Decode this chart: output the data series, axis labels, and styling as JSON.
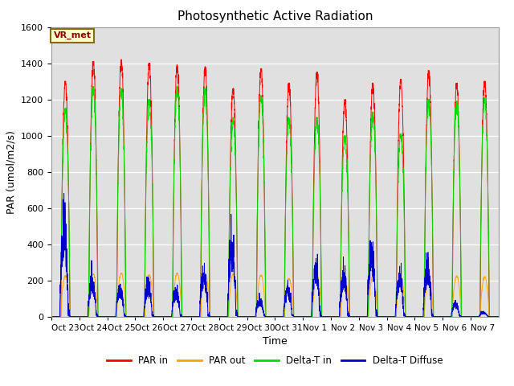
{
  "title": "Photosynthetic Active Radiation",
  "ylabel": "PAR (umol/m2/s)",
  "xlabel": "Time",
  "annotation": "VR_met",
  "ylim": [
    0,
    1600
  ],
  "bg_color": "#e0e0e0",
  "legend": [
    "PAR in",
    "PAR out",
    "Delta-T in",
    "Delta-T Diffuse"
  ],
  "legend_colors": [
    "#ff0000",
    "#ffa500",
    "#00dd00",
    "#0000cc"
  ],
  "x_tick_labels": [
    "Oct 23",
    "Oct 24",
    "Oct 25",
    "Oct 26",
    "Oct 27",
    "Oct 28",
    "Oct 29",
    "Oct 30",
    "Oct 31",
    "Nov 1",
    "Nov 2",
    "Nov 3",
    "Nov 4",
    "Nov 5",
    "Nov 6",
    "Nov 7"
  ],
  "n_days": 16,
  "pts_per_day": 288,
  "par_in_peaks": [
    1300,
    1410,
    1420,
    1400,
    1390,
    1380,
    1260,
    1370,
    1290,
    1350,
    1200,
    1290,
    1310,
    1360,
    1290,
    1300
  ],
  "par_out_peaks": [
    225,
    235,
    240,
    230,
    240,
    240,
    235,
    230,
    210,
    225,
    200,
    225,
    220,
    210,
    225,
    220
  ],
  "delta_t_peaks": [
    1150,
    1270,
    1260,
    1200,
    1270,
    1260,
    1100,
    1220,
    1100,
    1100,
    1000,
    1130,
    1010,
    1200,
    1190,
    1210
  ],
  "delta_t_diff_peaks": [
    680,
    310,
    180,
    220,
    175,
    295,
    565,
    130,
    200,
    345,
    330,
    420,
    295,
    355,
    90,
    30
  ]
}
